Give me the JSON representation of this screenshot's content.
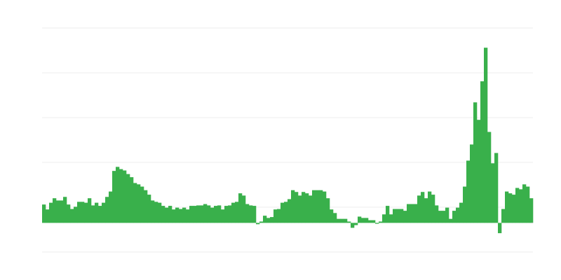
{
  "chart_data": {
    "type": "bar",
    "title": "",
    "xlabel": "",
    "ylabel": "",
    "ylim": [
      -0.65,
      4.35
    ],
    "gridlines": [
      -0.65,
      0.35,
      1.35,
      2.35,
      3.35,
      4.35
    ],
    "grid": true,
    "legend": "none",
    "colors": {
      "bar": "#39b04b",
      "grid": "#eeeeee",
      "baseline": "#bbbbbb"
    },
    "values": [
      0.41,
      0.3,
      0.45,
      0.55,
      0.5,
      0.5,
      0.58,
      0.41,
      0.31,
      0.36,
      0.47,
      0.47,
      0.45,
      0.55,
      0.39,
      0.45,
      0.38,
      0.45,
      0.58,
      0.7,
      1.16,
      1.25,
      1.2,
      1.17,
      1.09,
      1.02,
      0.89,
      0.86,
      0.81,
      0.73,
      0.63,
      0.5,
      0.47,
      0.45,
      0.38,
      0.34,
      0.38,
      0.3,
      0.34,
      0.31,
      0.34,
      0.3,
      0.38,
      0.38,
      0.39,
      0.39,
      0.42,
      0.39,
      0.34,
      0.38,
      0.39,
      0.3,
      0.38,
      0.39,
      0.45,
      0.47,
      0.66,
      0.61,
      0.42,
      0.39,
      0.38,
      -0.03,
      0.03,
      0.16,
      0.11,
      0.13,
      0.3,
      0.31,
      0.45,
      0.47,
      0.53,
      0.73,
      0.69,
      0.61,
      0.69,
      0.66,
      0.61,
      0.73,
      0.73,
      0.73,
      0.7,
      0.55,
      0.3,
      0.22,
      0.09,
      0.09,
      0.09,
      0.03,
      -0.11,
      -0.05,
      0.14,
      0.11,
      0.11,
      0.06,
      0.06,
      -0.02,
      0.03,
      0.19,
      0.38,
      0.19,
      0.31,
      0.31,
      0.31,
      0.27,
      0.42,
      0.42,
      0.42,
      0.61,
      0.69,
      0.55,
      0.7,
      0.63,
      0.39,
      0.27,
      0.27,
      0.34,
      0.09,
      0.27,
      0.34,
      0.45,
      0.81,
      1.39,
      1.75,
      2.69,
      2.3,
      3.16,
      3.91,
      2.03,
      1.33,
      1.56,
      -0.23,
      0.31,
      0.7,
      0.66,
      0.63,
      0.78,
      0.75,
      0.86,
      0.81,
      0.55
    ]
  }
}
